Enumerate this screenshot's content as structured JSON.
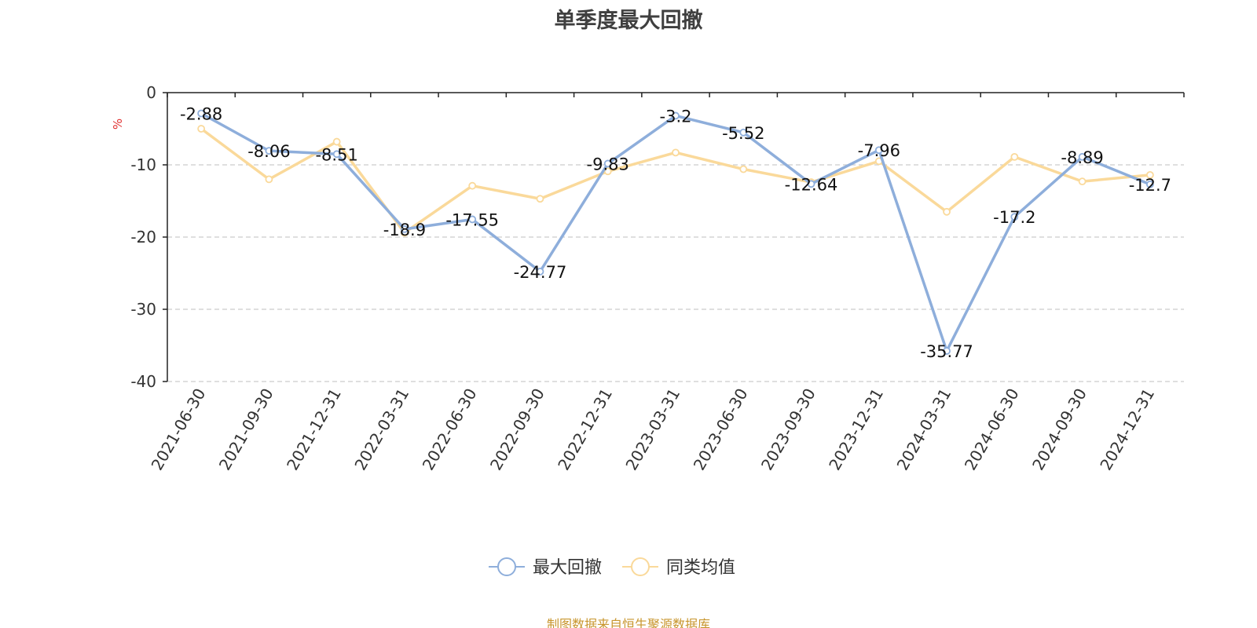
{
  "title": "单季度最大回撤",
  "source_note": "制图数据来自恒生聚源数据库",
  "chart_data": {
    "type": "line",
    "title": "单季度最大回撤",
    "ylabel": "%",
    "xlabel": "",
    "ylim": [
      -40,
      0
    ],
    "yticks": [
      0,
      -10,
      -20,
      -30,
      -40
    ],
    "grid": true,
    "legend_position": "bottom-center",
    "categories": [
      "2021-06-30",
      "2021-09-30",
      "2021-12-31",
      "2022-03-31",
      "2022-06-30",
      "2022-09-30",
      "2022-12-31",
      "2023-03-31",
      "2023-06-30",
      "2023-09-30",
      "2023-12-31",
      "2024-03-31",
      "2024-06-30",
      "2024-09-30",
      "2024-12-31"
    ],
    "series": [
      {
        "name": "最大回撤",
        "color": "#8eaedb",
        "show_labels": true,
        "values": [
          -2.88,
          -8.06,
          -8.51,
          -18.9,
          -17.55,
          -24.77,
          -9.83,
          -3.2,
          -5.52,
          -12.64,
          -7.96,
          -35.77,
          -17.2,
          -8.89,
          -12.7
        ]
      },
      {
        "name": "同类均值",
        "color": "#fad99a",
        "show_labels": false,
        "values": [
          -5.0,
          -12.0,
          -6.8,
          -19.4,
          -12.9,
          -14.7,
          -10.9,
          -8.3,
          -10.6,
          -12.4,
          -9.5,
          -16.5,
          -8.9,
          -12.3,
          -11.4
        ]
      }
    ]
  }
}
